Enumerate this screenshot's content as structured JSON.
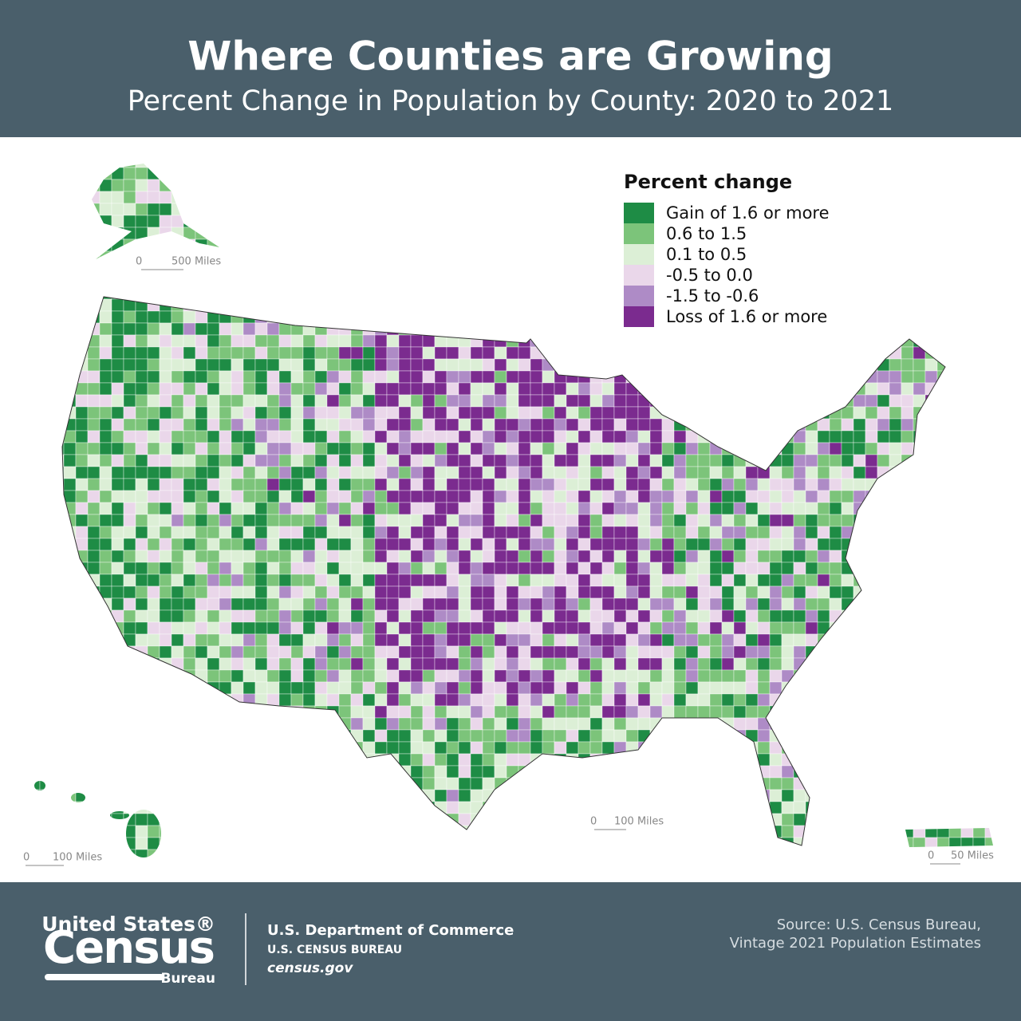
{
  "header": {
    "title": "Where Counties are Growing",
    "subtitle": "Percent Change in Population by County: 2020 to 2021"
  },
  "legend": {
    "title": "Percent change",
    "items": [
      {
        "label": "Gain of 1.6 or more",
        "color": "#1e8c45"
      },
      {
        "label": "0.6 to 1.5",
        "color": "#7cc47a"
      },
      {
        "label": "0.1 to 0.5",
        "color": "#dcefd6"
      },
      {
        "label": "-0.5 to 0.0",
        "color": "#ead7ea"
      },
      {
        "label": "-1.5 to -0.6",
        "color": "#ae8bc6"
      },
      {
        "label": "Loss of 1.6 or more",
        "color": "#7b2b8f"
      }
    ]
  },
  "scales": {
    "alaska": {
      "zero": "0",
      "label": "500 Miles"
    },
    "mainland": {
      "zero": "0",
      "label": "100 Miles"
    },
    "hawaii": {
      "zero": "0",
      "label": "100 Miles"
    },
    "puerto_rico": {
      "zero": "0",
      "label": "50 Miles"
    }
  },
  "footer": {
    "logo": {
      "line1": "United States®",
      "line2": "Census",
      "line3": "Bureau"
    },
    "department": "U.S. Department of Commerce",
    "bureau": "U.S. CENSUS BUREAU",
    "website": "census.gov",
    "source_line1": "Source: U.S. Census Bureau,",
    "source_line2": "Vintage 2021 Population Estimates"
  }
}
